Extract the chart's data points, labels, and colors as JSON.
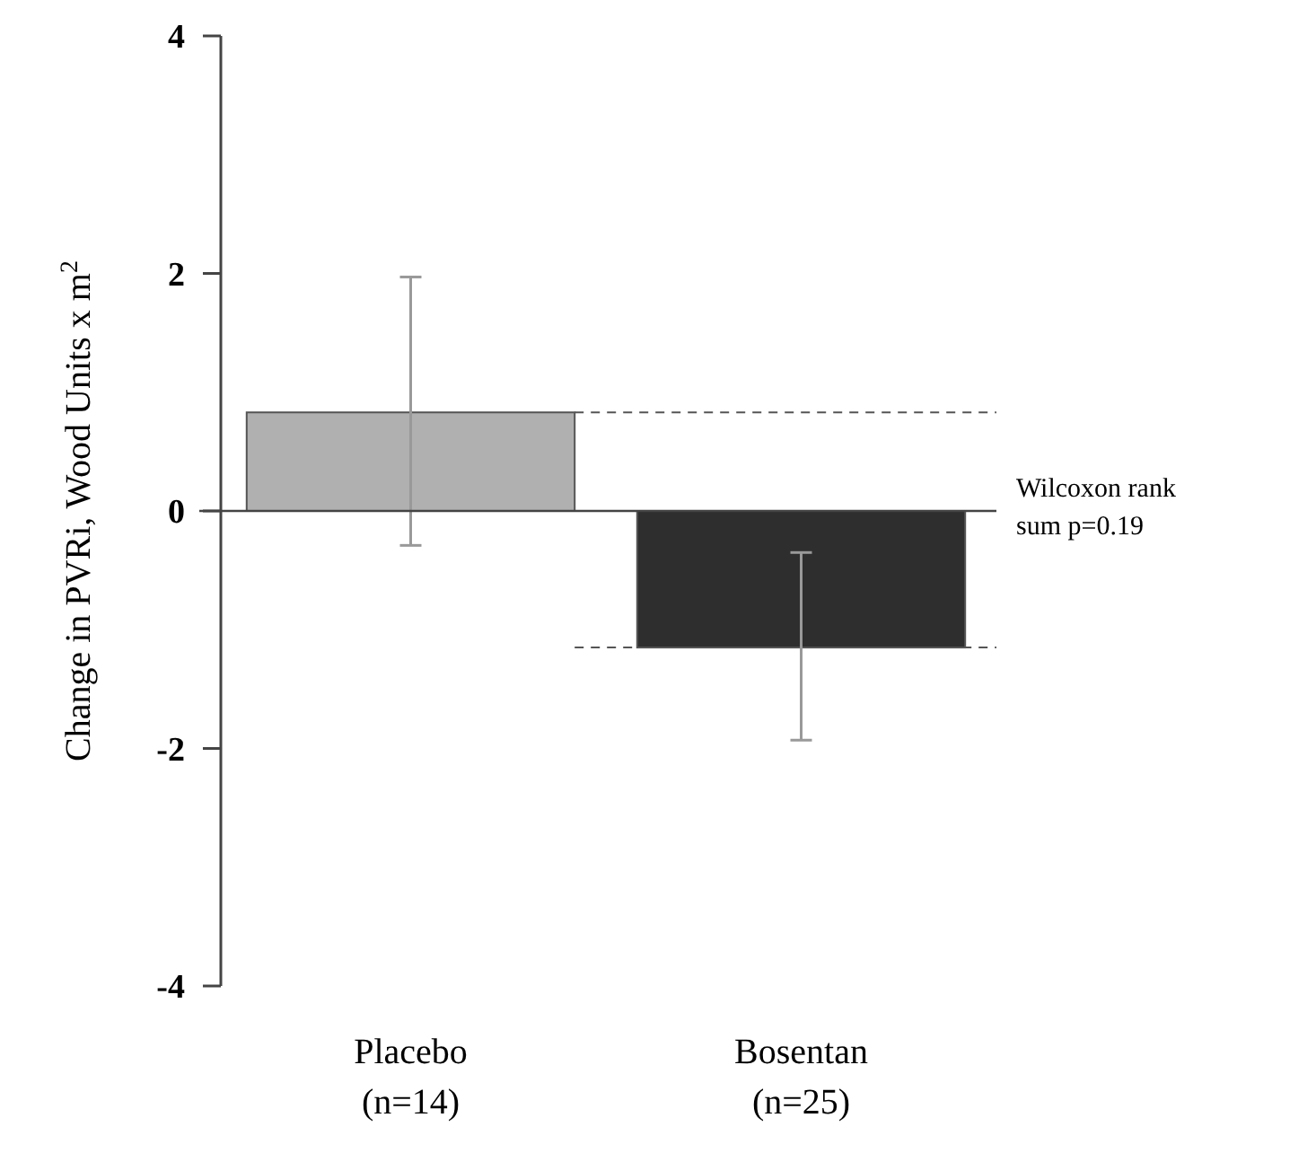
{
  "chart_data": {
    "type": "bar",
    "ylabel": "Change in PVRi, Wood Units x m$^{2}$",
    "categories": [
      "Placebo (n=14)",
      "Bosentan (n=25)"
    ],
    "values": [
      0.83,
      -1.15
    ],
    "colors": [
      "#b0b0b0",
      "#2e2e2e"
    ],
    "errors": [
      [
        -0.29,
        1.97
      ],
      [
        -1.93,
        -0.35
      ]
    ],
    "ylim": [
      -4,
      4
    ],
    "yticks": [
      -4,
      -2,
      0,
      2,
      4
    ],
    "ref_lines": [
      {
        "axis": "y",
        "value": 0.83,
        "line_style": "dashed",
        "color": "#555555"
      },
      {
        "axis": "y",
        "value": -1.15,
        "line_style": "dashed",
        "color": "#555555"
      }
    ],
    "annotations": [
      "Wilcoxon rank sum p=0.19"
    ]
  }
}
